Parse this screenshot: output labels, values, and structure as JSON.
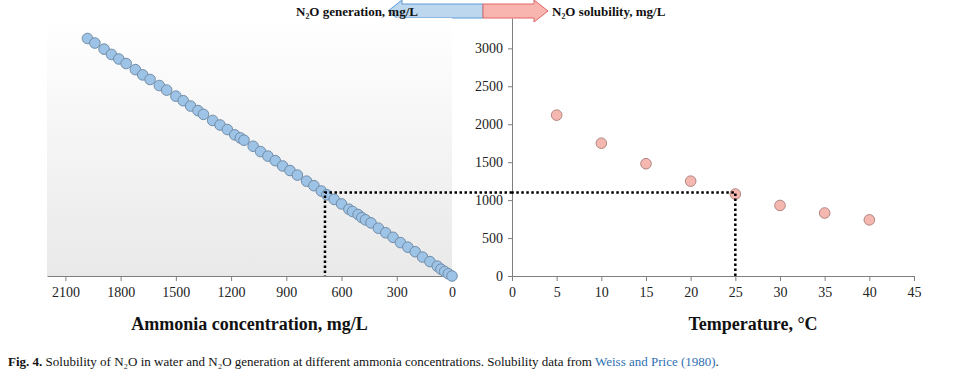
{
  "chart_data": [
    {
      "type": "scatter",
      "title": "N₂O generation, mg/L",
      "x_label": "Ammonia concentration, mg/L",
      "x": [
        1980,
        1940,
        1890,
        1850,
        1810,
        1770,
        1720,
        1680,
        1640,
        1590,
        1550,
        1500,
        1460,
        1420,
        1380,
        1350,
        1300,
        1260,
        1220,
        1180,
        1150,
        1130,
        1080,
        1040,
        1000,
        960,
        920,
        880,
        840,
        790,
        750,
        710,
        680,
        640,
        600,
        560,
        540,
        510,
        490,
        470,
        440,
        400,
        360,
        320,
        280,
        240,
        200,
        160,
        120,
        80,
        60,
        40,
        20,
        0
      ],
      "values": [
        3130,
        3070,
        2990,
        2920,
        2860,
        2800,
        2720,
        2650,
        2590,
        2510,
        2450,
        2370,
        2310,
        2240,
        2180,
        2130,
        2050,
        1990,
        1930,
        1860,
        1820,
        1790,
        1710,
        1640,
        1580,
        1520,
        1450,
        1390,
        1330,
        1250,
        1190,
        1120,
        1070,
        1010,
        950,
        880,
        850,
        810,
        770,
        740,
        700,
        630,
        570,
        510,
        440,
        380,
        320,
        250,
        190,
        130,
        90,
        60,
        30,
        0
      ],
      "color": "#9dc3e6",
      "marker": "circle",
      "xlim": [
        2200,
        0
      ],
      "xticks": [
        2100,
        1800,
        1500,
        1200,
        900,
        600,
        300,
        0
      ],
      "ylim": [
        0,
        3400
      ],
      "tick_labels": "x",
      "grid": false,
      "guide": {
        "x": 690,
        "y": 1100
      }
    },
    {
      "type": "scatter",
      "title": "N₂O solubility,  mg/L",
      "x_label": "Temperature, °C",
      "x": [
        5,
        10,
        15,
        20,
        25,
        30,
        35,
        40
      ],
      "values": [
        2120,
        1750,
        1480,
        1250,
        1080,
        930,
        830,
        740
      ],
      "color": "#f4b8b0",
      "marker": "circle",
      "xlim": [
        0,
        45
      ],
      "xticks": [
        0,
        5,
        10,
        15,
        20,
        25,
        30,
        35,
        40,
        45
      ],
      "ylim": [
        0,
        3400
      ],
      "yticks": [
        0,
        500,
        1000,
        1500,
        2000,
        2500,
        3000
      ],
      "grid": false,
      "guide": {
        "x": 25,
        "y": 1100
      }
    }
  ],
  "caption": {
    "label": "Fig. 4.",
    "text": " Solubility of N₂O in water and N₂O generation at different ammonia concentrations. Solubility data from ",
    "citation": "Weiss and Price (1980)",
    "text_after": "."
  }
}
